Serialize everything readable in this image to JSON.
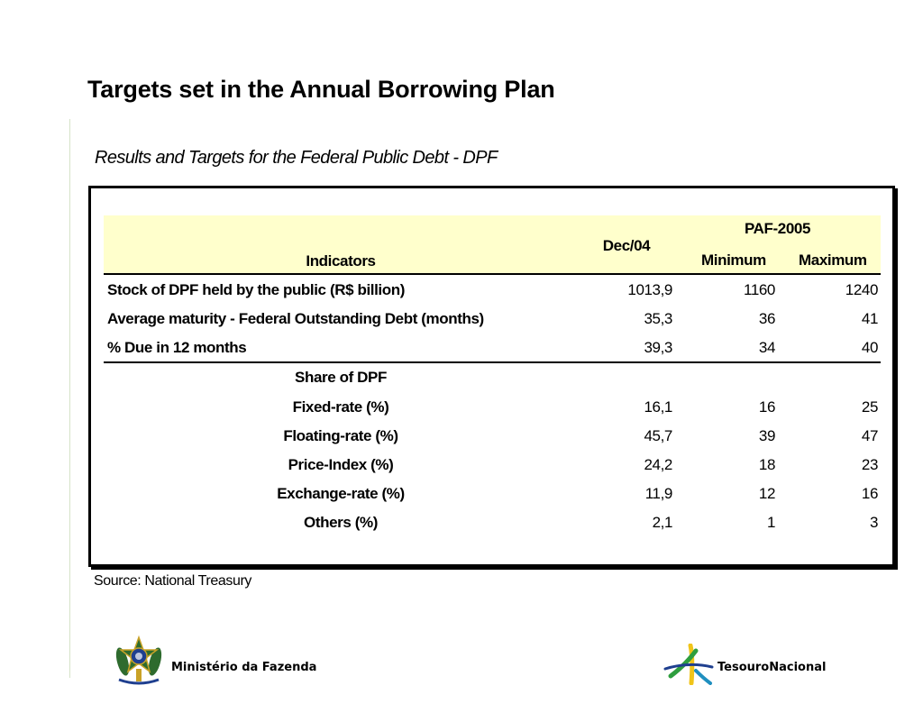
{
  "slide": {
    "title": "Targets set in the Annual Borrowing Plan",
    "subtitle": "Results and Targets for the Federal Public Debt - DPF",
    "source": "Source: National Treasury"
  },
  "table": {
    "headers": {
      "indicators": "Indicators",
      "dec04": "Dec/04",
      "paf_group": "PAF-2005",
      "minimum": "Minimum",
      "maximum": "Maximum"
    },
    "main_rows": [
      {
        "label": "Stock of DPF held by the public (R$ billion)",
        "dec04": "1013,9",
        "min": "1160",
        "max": "1240"
      },
      {
        "label": "Average maturity -  Federal Outstanding Debt (months)",
        "dec04": "35,3",
        "min": "36",
        "max": "41"
      },
      {
        "label": "% Due in 12 months",
        "dec04": "39,3",
        "min": "34",
        "max": "40"
      }
    ],
    "share_heading": "Share of DPF",
    "share_rows": [
      {
        "label": "Fixed-rate (%)",
        "dec04": "16,1",
        "min": "16",
        "max": "25"
      },
      {
        "label": "Floating-rate (%)",
        "dec04": "45,7",
        "min": "39",
        "max": "47"
      },
      {
        "label": "Price-Index (%)",
        "dec04": "24,2",
        "min": "18",
        "max": "23"
      },
      {
        "label": "Exchange-rate (%)",
        "dec04": "11,9",
        "min": "12",
        "max": "16"
      },
      {
        "label": "Others (%)",
        "dec04": "2,1",
        "min": "1",
        "max": "3"
      }
    ]
  },
  "footer": {
    "left_label": "Ministério da Fazenda",
    "right_label": "TesouroNacional",
    "left_logo_icon": "coat-of-arms-icon",
    "right_logo_icon": "tesouro-star-icon"
  }
}
